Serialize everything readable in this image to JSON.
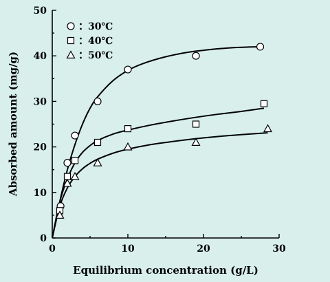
{
  "page": {
    "background": "#d8efec"
  },
  "chart_data": {
    "type": "scatter",
    "title": "",
    "xlabel": "Equilibrium concentration (g/L)",
    "ylabel": "Absorbed amount (mg/g)",
    "xlim": [
      0,
      30
    ],
    "ylim": [
      0,
      50
    ],
    "xticks": [
      0,
      10,
      20,
      30
    ],
    "yticks": [
      0,
      10,
      20,
      30,
      40,
      50
    ],
    "grid": false,
    "legend_position": "top-left",
    "series": [
      {
        "name": "：30℃",
        "marker": "circle",
        "points": [
          {
            "x": 1.1,
            "y": 7
          },
          {
            "x": 2.0,
            "y": 16.5
          },
          {
            "x": 3.0,
            "y": 22.5
          },
          {
            "x": 6.0,
            "y": 30
          },
          {
            "x": 10.0,
            "y": 37
          },
          {
            "x": 19.0,
            "y": 40
          },
          {
            "x": 27.5,
            "y": 42
          }
        ],
        "fit_curve": [
          {
            "x": 0,
            "y": 0
          },
          {
            "x": 1,
            "y": 8
          },
          {
            "x": 2,
            "y": 15
          },
          {
            "x": 3,
            "y": 20.5
          },
          {
            "x": 4,
            "y": 25
          },
          {
            "x": 5,
            "y": 28.5
          },
          {
            "x": 6,
            "y": 31
          },
          {
            "x": 8,
            "y": 34.5
          },
          {
            "x": 10,
            "y": 36.8
          },
          {
            "x": 12,
            "y": 38.3
          },
          {
            "x": 15,
            "y": 39.8
          },
          {
            "x": 18,
            "y": 40.8
          },
          {
            "x": 21,
            "y": 41.4
          },
          {
            "x": 24,
            "y": 41.8
          },
          {
            "x": 27.5,
            "y": 42
          }
        ]
      },
      {
        "name": "：40℃",
        "marker": "square",
        "points": [
          {
            "x": 1.0,
            "y": 6
          },
          {
            "x": 2.0,
            "y": 13.5
          },
          {
            "x": 3.0,
            "y": 17
          },
          {
            "x": 6.0,
            "y": 21
          },
          {
            "x": 10.0,
            "y": 24
          },
          {
            "x": 19.0,
            "y": 25
          },
          {
            "x": 28.0,
            "y": 29.5
          }
        ],
        "fit_curve": [
          {
            "x": 0,
            "y": 0
          },
          {
            "x": 1,
            "y": 8
          },
          {
            "x": 2,
            "y": 13
          },
          {
            "x": 3,
            "y": 16.5
          },
          {
            "x": 4,
            "y": 18.8
          },
          {
            "x": 5,
            "y": 20.3
          },
          {
            "x": 6,
            "y": 21.4
          },
          {
            "x": 8,
            "y": 22.8
          },
          {
            "x": 10,
            "y": 23.7
          },
          {
            "x": 13,
            "y": 24.8
          },
          {
            "x": 16,
            "y": 25.7
          },
          {
            "x": 19,
            "y": 26.5
          },
          {
            "x": 22,
            "y": 27.2
          },
          {
            "x": 25,
            "y": 27.8
          },
          {
            "x": 28,
            "y": 28.5
          }
        ]
      },
      {
        "name": "：50℃",
        "marker": "triangle",
        "points": [
          {
            "x": 1.0,
            "y": 5
          },
          {
            "x": 2.0,
            "y": 12
          },
          {
            "x": 3.0,
            "y": 13.5
          },
          {
            "x": 6.0,
            "y": 16.5
          },
          {
            "x": 10.0,
            "y": 20
          },
          {
            "x": 19.0,
            "y": 21
          },
          {
            "x": 28.5,
            "y": 24
          }
        ],
        "fit_curve": [
          {
            "x": 0,
            "y": 0
          },
          {
            "x": 1,
            "y": 7
          },
          {
            "x": 2,
            "y": 11
          },
          {
            "x": 3,
            "y": 13.5
          },
          {
            "x": 4,
            "y": 15.2
          },
          {
            "x": 5,
            "y": 16.4
          },
          {
            "x": 6,
            "y": 17.3
          },
          {
            "x": 8,
            "y": 18.6
          },
          {
            "x": 10,
            "y": 19.5
          },
          {
            "x": 13,
            "y": 20.5
          },
          {
            "x": 16,
            "y": 21.2
          },
          {
            "x": 19,
            "y": 21.8
          },
          {
            "x": 22,
            "y": 22.3
          },
          {
            "x": 25,
            "y": 22.7
          },
          {
            "x": 28.5,
            "y": 23.1
          }
        ]
      }
    ]
  }
}
